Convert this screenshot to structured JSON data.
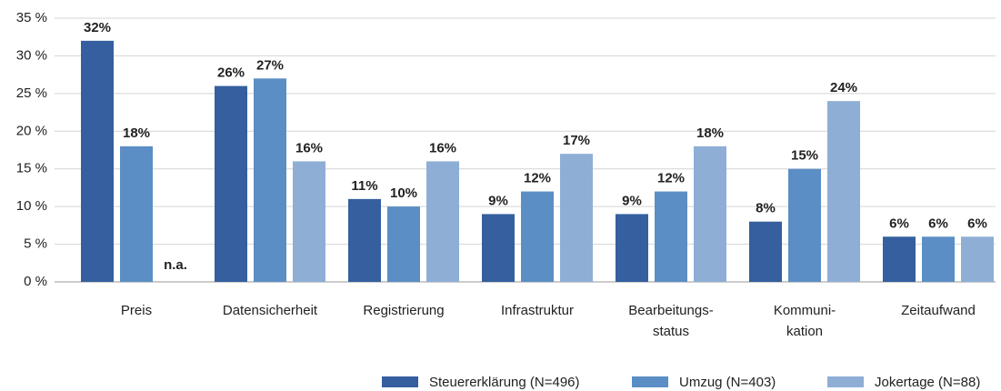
{
  "chart_data": {
    "type": "bar",
    "categories": [
      "Preis",
      "Datensicherheit",
      "Registrierung",
      "Infrastruktur",
      "Bearbeitungs-\nstatus",
      "Kommuni-\nkation",
      "Zeitaufwand"
    ],
    "series": [
      {
        "name": "Steuererklärung (N=496)",
        "color": "#355f9e",
        "values": [
          32,
          26,
          11,
          9,
          9,
          8,
          6
        ],
        "value_labels": [
          "32%",
          "26%",
          "11%",
          "9%",
          "9%",
          "8%",
          "6%"
        ]
      },
      {
        "name": "Umzug (N=403)",
        "color": "#5b8ec4",
        "values": [
          18,
          27,
          10,
          12,
          12,
          15,
          6
        ],
        "value_labels": [
          "18%",
          "27%",
          "10%",
          "12%",
          "12%",
          "15%",
          "6%"
        ]
      },
      {
        "name": "Jokertage (N=88)",
        "color": "#8eaed6",
        "values": [
          null,
          16,
          16,
          17,
          18,
          24,
          6
        ],
        "value_labels": [
          "n.a.",
          "16%",
          "16%",
          "17%",
          "18%",
          "24%",
          "6%"
        ]
      }
    ],
    "ylim": [
      0,
      35
    ],
    "yticks": [
      {
        "value": 0,
        "label": "0 %"
      },
      {
        "value": 5,
        "label": "5 %"
      },
      {
        "value": 10,
        "label": "10 %"
      },
      {
        "value": 15,
        "label": "15 %"
      },
      {
        "value": 20,
        "label": "20 %"
      },
      {
        "value": 25,
        "label": "25 %"
      },
      {
        "value": 30,
        "label": "30 %"
      },
      {
        "value": 35,
        "label": "35 %"
      }
    ],
    "grid": true,
    "legend": "bottom-right"
  }
}
